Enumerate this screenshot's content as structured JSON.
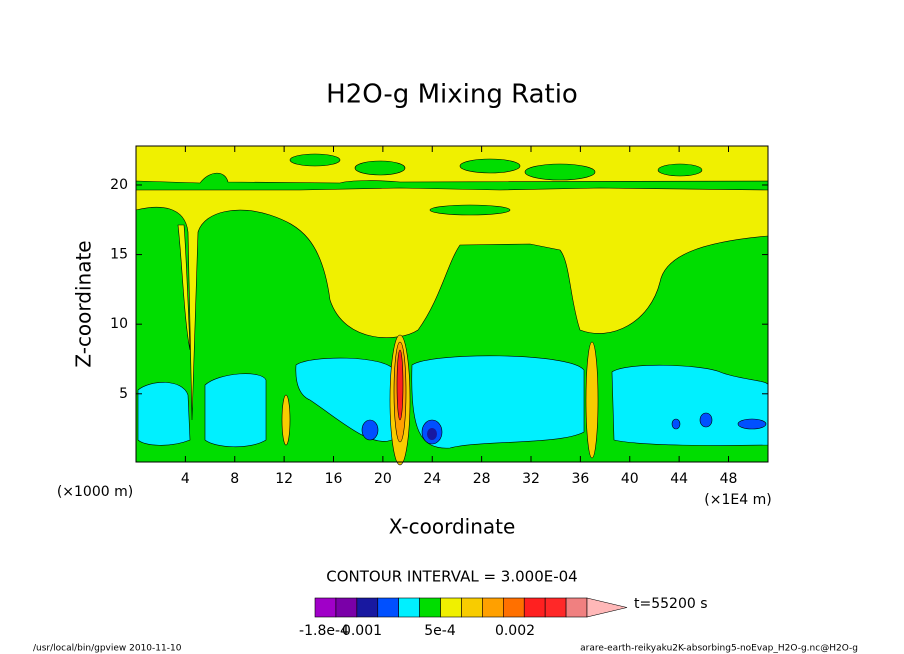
{
  "chart_data": {
    "type": "contour",
    "title": "H2O-g Mixing Ratio",
    "x_label": "X-coordinate",
    "y_label": "Z-coordinate",
    "x_unit_left": "(×1000 m)",
    "x_unit_right": "(×1E4 m)",
    "xlim": [
      0,
      51.2
    ],
    "ylim": [
      0.1,
      22.8
    ],
    "xticks": [
      4,
      8,
      12,
      16,
      20,
      24,
      28,
      32,
      36,
      40,
      44,
      48
    ],
    "yticks": [
      5,
      10,
      15,
      20
    ],
    "contour_interval": "CONTOUR INTERVAL = 3.000E-04",
    "time": "t=55200 s",
    "colorbar_colors": [
      "#a000c8",
      "#7a00a8",
      "#1818a0",
      "#0050ff",
      "#00f0ff",
      "#00dd00",
      "#f0f000",
      "#f8cc00",
      "#ffa000",
      "#ff7000",
      "#ff2020",
      "#ff2828",
      "#f08080"
    ],
    "colorbar_arrow_color": "#ffb8b8",
    "colorbar_labels": [
      "-1.8e-4",
      "0.001",
      "5e-4",
      "0.002"
    ],
    "footer_left": "/usr/local/bin/gpview  2010-11-10",
    "footer_right": "arare-earth-reikyaku2K-absorbing5-noEvap_H2O-g.nc@H2O-g"
  }
}
